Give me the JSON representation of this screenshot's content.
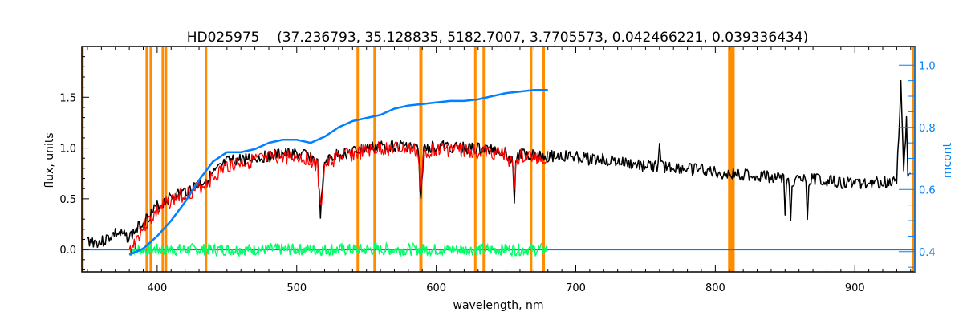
{
  "chart_data": {
    "type": "line",
    "title": "HD025975    (37.236793, 35.128835, 5182.7007, 3.7705573, 0.042466221, 0.039336434)",
    "xlabel": "wavelength, nm",
    "ylabel": "flux, units",
    "y2label": "mcont",
    "xlim": [
      346,
      943
    ],
    "ylim": [
      -0.22,
      2.0
    ],
    "y2lim": [
      0.335,
      1.06
    ],
    "xticks": [
      400,
      500,
      600,
      700,
      800,
      900
    ],
    "yticks": [
      "0.0",
      "0.5",
      "1.0",
      "1.5"
    ],
    "ytick_values": [
      0,
      0.5,
      1.0,
      1.5
    ],
    "y2ticks": [
      "0.4",
      "0.6",
      "0.8",
      "1.0"
    ],
    "y2tick_values": [
      0.4,
      0.6,
      0.8,
      1.0
    ],
    "colors": {
      "observed": "#000000",
      "model": "#ff0000",
      "continuum": "#0080ff",
      "residual": "#00ff66",
      "masks": "#ff8c00",
      "axis2": "#0080ff"
    },
    "masked_lines_nm": [
      346.5,
      392.5,
      395.4,
      404,
      406.3,
      435,
      543.7,
      555.8,
      589,
      628,
      634,
      668,
      677,
      810,
      811.5,
      813,
      942
    ],
    "series": [
      {
        "name": "observed",
        "axis": "left",
        "x": [
          350,
          360,
          370,
          380,
          390,
          400,
          410,
          420,
          430,
          440,
          450,
          460,
          470,
          480,
          490,
          500,
          510,
          515,
          517,
          520,
          530,
          540,
          550,
          560,
          570,
          580,
          587,
          589,
          591,
          600,
          610,
          620,
          630,
          640,
          650,
          655,
          656,
          657,
          660,
          670,
          680,
          690,
          700,
          710,
          720,
          730,
          740,
          750,
          759,
          760,
          761,
          770,
          780,
          790,
          800,
          810,
          820,
          830,
          840,
          849,
          850,
          851,
          853,
          854,
          855,
          860,
          865,
          866,
          867,
          870,
          880,
          890,
          900,
          910,
          920,
          930,
          933,
          935,
          937,
          938,
          940
        ],
        "y": [
          0.15,
          0.13,
          0.22,
          0.18,
          0.33,
          0.48,
          0.58,
          0.63,
          0.7,
          0.8,
          0.92,
          0.95,
          0.96,
          0.98,
          1.0,
          1.0,
          0.98,
          0.9,
          0.4,
          0.92,
          1.0,
          1.02,
          1.05,
          1.08,
          1.08,
          1.08,
          1.05,
          0.52,
          1.05,
          1.08,
          1.07,
          1.06,
          1.05,
          1.04,
          1.02,
          0.9,
          0.52,
          0.95,
          1.0,
          1.0,
          0.98,
          0.98,
          0.97,
          0.95,
          0.95,
          0.92,
          0.9,
          0.88,
          0.88,
          1.05,
          0.88,
          0.87,
          0.85,
          0.85,
          0.82,
          0.8,
          0.8,
          0.78,
          0.78,
          0.76,
          0.35,
          0.74,
          0.74,
          0.3,
          0.74,
          0.75,
          0.74,
          0.3,
          0.74,
          0.76,
          0.74,
          0.72,
          0.72,
          0.72,
          0.72,
          0.75,
          1.7,
          0.8,
          1.35,
          0.8,
          0.75
        ]
      },
      {
        "name": "model",
        "axis": "left",
        "x": [
          380,
          390,
          400,
          410,
          420,
          430,
          440,
          450,
          460,
          470,
          480,
          490,
          500,
          510,
          515,
          517,
          520,
          530,
          540,
          550,
          560,
          570,
          580,
          587,
          589,
          591,
          600,
          610,
          620,
          630,
          640,
          650,
          655,
          656,
          657,
          660,
          670,
          680
        ],
        "y": [
          0.05,
          0.3,
          0.45,
          0.56,
          0.62,
          0.68,
          0.78,
          0.9,
          0.93,
          0.95,
          0.97,
          0.99,
          0.99,
          0.97,
          0.88,
          0.45,
          0.9,
          0.99,
          1.01,
          1.04,
          1.07,
          1.07,
          1.07,
          1.03,
          0.6,
          1.03,
          1.07,
          1.06,
          1.05,
          1.04,
          1.03,
          1.01,
          0.9,
          0.6,
          0.94,
          0.99,
          0.99,
          0.97
        ]
      },
      {
        "name": "continuum",
        "axis": "right",
        "x": [
          380,
          390,
          400,
          410,
          420,
          430,
          440,
          450,
          460,
          470,
          480,
          490,
          500,
          510,
          520,
          530,
          540,
          550,
          560,
          570,
          580,
          590,
          600,
          610,
          620,
          630,
          640,
          650,
          660,
          670,
          680
        ],
        "y": [
          0.39,
          0.41,
          0.45,
          0.5,
          0.56,
          0.63,
          0.69,
          0.72,
          0.72,
          0.73,
          0.75,
          0.76,
          0.76,
          0.75,
          0.77,
          0.8,
          0.82,
          0.83,
          0.84,
          0.86,
          0.87,
          0.875,
          0.88,
          0.885,
          0.885,
          0.89,
          0.9,
          0.91,
          0.915,
          0.92,
          0.92
        ]
      },
      {
        "name": "residual",
        "axis": "left",
        "x_range": [
          380,
          680
        ],
        "center": 0.0,
        "amplitude": 0.06
      },
      {
        "name": "zero-level",
        "axis": "left",
        "x": [
          346,
          943
        ],
        "y": [
          0,
          0
        ]
      }
    ]
  }
}
